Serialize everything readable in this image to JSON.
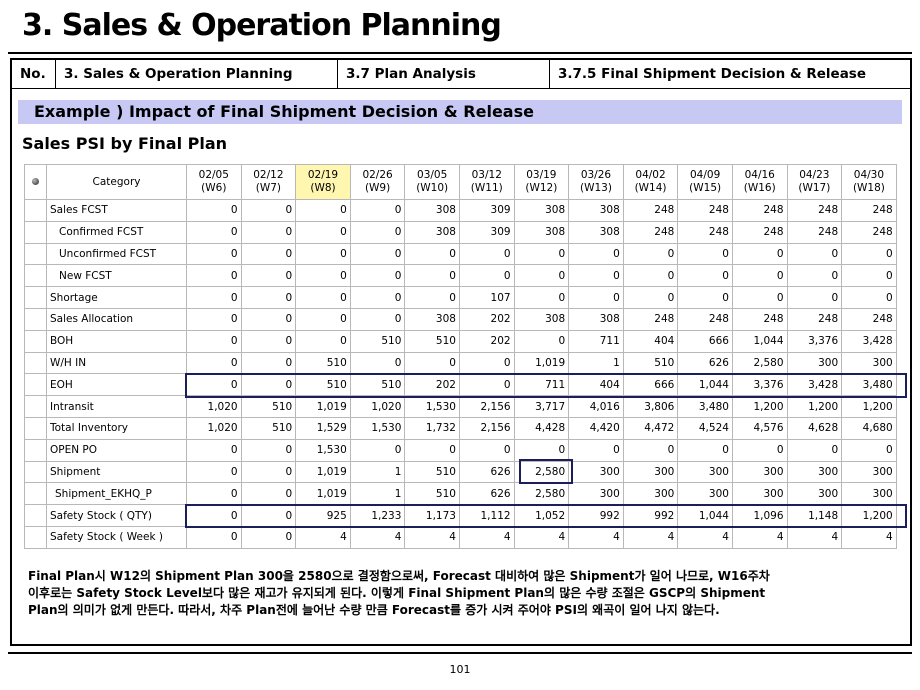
{
  "page_title": "3. Sales & Operation Planning",
  "header": {
    "no_label": "No.",
    "section": "3. Sales & Operation Planning",
    "subsection": "3.7 Plan Analysis",
    "item": "3.7.5 Final Shipment Decision & Release"
  },
  "example_title": "Example ) Impact of Final Shipment Decision & Release",
  "table_title": "Sales PSI by Final Plan",
  "table": {
    "category_header": "Category",
    "weeks": [
      [
        "02/05",
        "(W6)"
      ],
      [
        "02/12",
        "(W7)"
      ],
      [
        "02/19",
        "(W8)"
      ],
      [
        "02/26",
        "(W9)"
      ],
      [
        "03/05",
        "(W10)"
      ],
      [
        "03/12",
        "(W11)"
      ],
      [
        "03/19",
        "(W12)"
      ],
      [
        "03/26",
        "(W13)"
      ],
      [
        "04/02",
        "(W14)"
      ],
      [
        "04/09",
        "(W15)"
      ],
      [
        "04/16",
        "(W16)"
      ],
      [
        "04/23",
        "(W17)"
      ],
      [
        "04/30",
        "(W18)"
      ]
    ],
    "highlight_week_index": 2,
    "rows": [
      {
        "label": "Sales FCST",
        "indent": 0,
        "values": [
          "0",
          "0",
          "0",
          "0",
          "308",
          "309",
          "308",
          "308",
          "248",
          "248",
          "248",
          "248",
          "248"
        ]
      },
      {
        "label": "Confirmed FCST",
        "indent": 1,
        "values": [
          "0",
          "0",
          "0",
          "0",
          "308",
          "309",
          "308",
          "308",
          "248",
          "248",
          "248",
          "248",
          "248"
        ]
      },
      {
        "label": "Unconfirmed FCST",
        "indent": 1,
        "values": [
          "0",
          "0",
          "0",
          "0",
          "0",
          "0",
          "0",
          "0",
          "0",
          "0",
          "0",
          "0",
          "0"
        ]
      },
      {
        "label": "New FCST",
        "indent": 1,
        "values": [
          "0",
          "0",
          "0",
          "0",
          "0",
          "0",
          "0",
          "0",
          "0",
          "0",
          "0",
          "0",
          "0"
        ]
      },
      {
        "label": "Shortage",
        "indent": 0,
        "values": [
          "0",
          "0",
          "0",
          "0",
          "0",
          "107",
          "0",
          "0",
          "0",
          "0",
          "0",
          "0",
          "0"
        ]
      },
      {
        "label": "Sales Allocation",
        "indent": 0,
        "values": [
          "0",
          "0",
          "0",
          "0",
          "308",
          "202",
          "308",
          "308",
          "248",
          "248",
          "248",
          "248",
          "248"
        ]
      },
      {
        "label": "BOH",
        "indent": 0,
        "values": [
          "0",
          "0",
          "0",
          "510",
          "510",
          "202",
          "0",
          "711",
          "404",
          "666",
          "1,044",
          "3,376",
          "3,428"
        ]
      },
      {
        "label": "W/H IN",
        "indent": 0,
        "values": [
          "0",
          "0",
          "510",
          "0",
          "0",
          "0",
          "1,019",
          "1",
          "510",
          "626",
          "2,580",
          "300",
          "300"
        ]
      },
      {
        "label": "EOH",
        "indent": 0,
        "values": [
          "0",
          "0",
          "510",
          "510",
          "202",
          "0",
          "711",
          "404",
          "666",
          "1,044",
          "3,376",
          "3,428",
          "3,480"
        ]
      },
      {
        "label": "Intransit",
        "indent": 0,
        "values": [
          "1,020",
          "510",
          "1,019",
          "1,020",
          "1,530",
          "2,156",
          "3,717",
          "4,016",
          "3,806",
          "3,480",
          "1,200",
          "1,200",
          "1,200"
        ]
      },
      {
        "label": "Total Inventory",
        "indent": 0,
        "values": [
          "1,020",
          "510",
          "1,529",
          "1,530",
          "1,732",
          "2,156",
          "4,428",
          "4,420",
          "4,472",
          "4,524",
          "4,576",
          "4,628",
          "4,680"
        ]
      },
      {
        "label": "OPEN PO",
        "indent": 0,
        "values": [
          "0",
          "0",
          "1,530",
          "0",
          "0",
          "0",
          "0",
          "0",
          "0",
          "0",
          "0",
          "0",
          "0"
        ]
      },
      {
        "label": "Shipment",
        "indent": 0,
        "values": [
          "0",
          "0",
          "1,019",
          "1",
          "510",
          "626",
          "2,580",
          "300",
          "300",
          "300",
          "300",
          "300",
          "300"
        ]
      },
      {
        "label": "Shipment_EKHQ_P",
        "indent": 2,
        "values": [
          "0",
          "0",
          "1,019",
          "1",
          "510",
          "626",
          "2,580",
          "300",
          "300",
          "300",
          "300",
          "300",
          "300"
        ]
      },
      {
        "label": "Safety Stock ( QTY)",
        "indent": 0,
        "values": [
          "0",
          "0",
          "925",
          "1,233",
          "1,173",
          "1,112",
          "1,052",
          "992",
          "992",
          "1,044",
          "1,096",
          "1,148",
          "1,200"
        ]
      },
      {
        "label": "Safety Stock ( Week )",
        "indent": 0,
        "values": [
          "0",
          "0",
          "4",
          "4",
          "4",
          "4",
          "4",
          "4",
          "4",
          "4",
          "4",
          "4",
          "4"
        ]
      }
    ]
  },
  "note_lines": [
    "Final Plan시 W12의 Shipment Plan 300을 2580으로 결정함으로써, Forecast 대비하여 많은 Shipment가 일어 나므로, W16주차",
    "이후로는 Safety Stock Level보다 많은 재고가 유지되게 된다. 이렇게 Final Shipment Plan의 많은 수량 조절은 GSCP의 Shipment",
    "Plan의 의미가 없게 만든다. 따라서, 차주 Plan전에 늘어난 수량 만큼 Forecast를 증가 시켜 주어야 PSI의 왜곡이 일어 나지 않는다."
  ],
  "page_number": "101"
}
